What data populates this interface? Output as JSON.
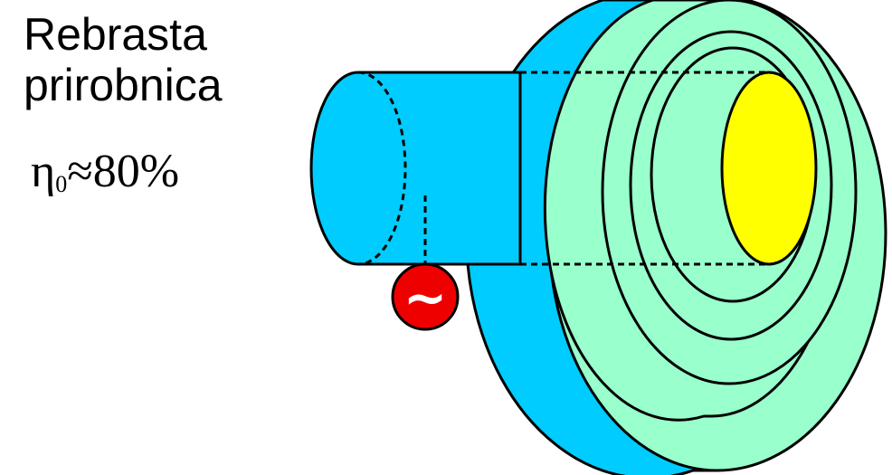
{
  "label": {
    "line1": "Rebrasta",
    "line2": "prirobnica",
    "efficiency_symbol": "η",
    "efficiency_subscript": "0",
    "efficiency_value": "≈80%"
  },
  "source_symbol": "~",
  "colors": {
    "cylinder": "#00ccff",
    "flange_face": "#99ffcc",
    "aperture": "#ffff00",
    "source": "#ee0000"
  }
}
